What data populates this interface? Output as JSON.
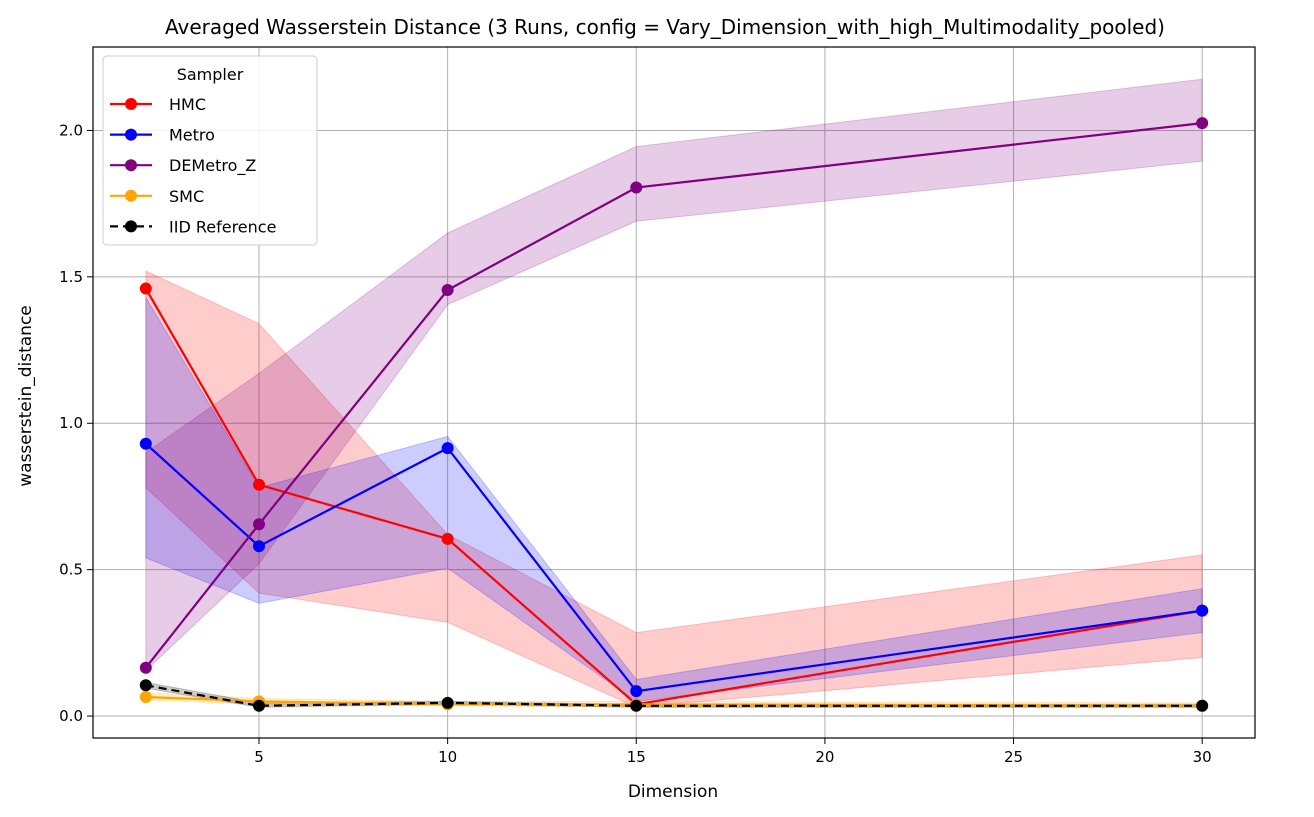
{
  "chart_data": {
    "type": "line",
    "title": "Averaged Wasserstein Distance (3 Runs, config = Vary_Dimension_with_high_Multimodality_pooled)",
    "xlabel": "Dimension",
    "ylabel": "wasserstein_distance",
    "xlim": [
      0.6,
      31.4
    ],
    "ylim": [
      -0.075,
      2.285
    ],
    "xticks": [
      5,
      10,
      15,
      20,
      25,
      30
    ],
    "yticks": [
      0.0,
      0.5,
      1.0,
      1.5,
      2.0
    ],
    "xtick_labels": [
      "5",
      "10",
      "15",
      "20",
      "25",
      "30"
    ],
    "ytick_labels": [
      "0.0",
      "0.5",
      "1.0",
      "1.5",
      "2.0"
    ],
    "grid": true,
    "legend": {
      "title": "Sampler",
      "position": "top-left"
    },
    "x": [
      2,
      5,
      10,
      15,
      30
    ],
    "series": [
      {
        "name": "HMC",
        "color": "#ff0000",
        "dashed": false,
        "values": [
          1.46,
          0.79,
          0.605,
          0.04,
          0.36
        ],
        "lower": [
          0.78,
          0.42,
          0.32,
          0.03,
          0.2
        ],
        "upper": [
          1.52,
          1.34,
          0.62,
          0.285,
          0.55
        ]
      },
      {
        "name": "Metro",
        "color": "#0000ff",
        "dashed": false,
        "values": [
          0.93,
          0.58,
          0.915,
          0.085,
          0.36
        ],
        "lower": [
          0.54,
          0.385,
          0.505,
          0.05,
          0.285
        ],
        "upper": [
          1.43,
          0.78,
          0.955,
          0.125,
          0.435
        ]
      },
      {
        "name": "DEMetro_Z",
        "color": "#800080",
        "dashed": false,
        "values": [
          0.165,
          0.655,
          1.455,
          1.805,
          2.025
        ],
        "lower": [
          0.155,
          0.52,
          1.405,
          1.69,
          1.895
        ],
        "upper": [
          0.9,
          1.17,
          1.65,
          1.945,
          2.175
        ]
      },
      {
        "name": "SMC",
        "color": "#ffa500",
        "dashed": false,
        "values": [
          0.065,
          0.05,
          0.04,
          0.04,
          0.035
        ],
        "lower": [
          0.055,
          0.04,
          0.035,
          0.03,
          0.03
        ],
        "upper": [
          0.08,
          0.06,
          0.05,
          0.05,
          0.045
        ]
      },
      {
        "name": "IID Reference",
        "color": "#000000",
        "dashed": true,
        "values": [
          0.105,
          0.035,
          0.045,
          0.035,
          0.035
        ],
        "lower": [
          0.095,
          0.03,
          0.04,
          0.03,
          0.03
        ],
        "upper": [
          0.115,
          0.045,
          0.05,
          0.04,
          0.04
        ]
      }
    ]
  }
}
